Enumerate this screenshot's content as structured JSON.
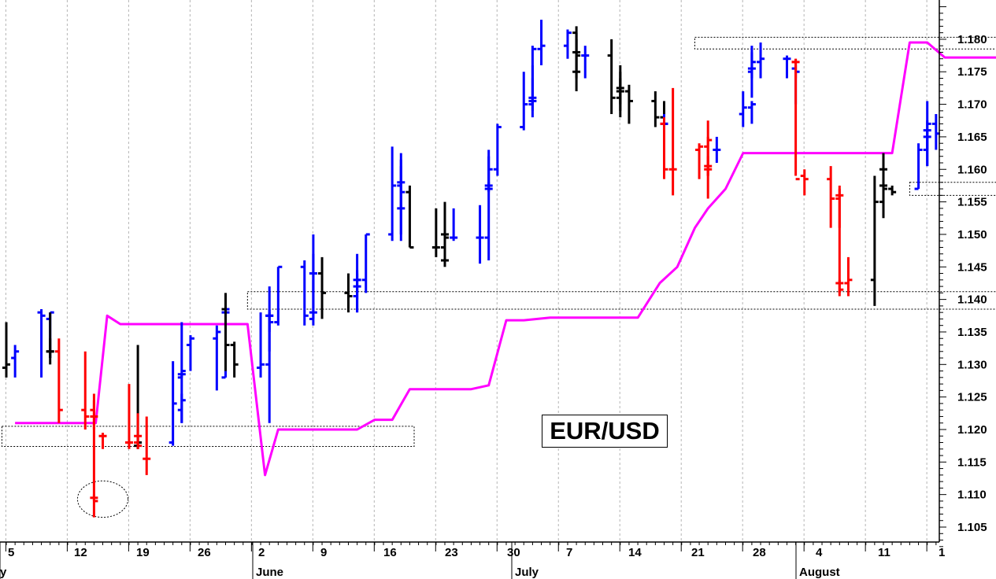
{
  "chart_data": {
    "type": "bar",
    "title": "EUR/USD",
    "y_ticks": [
      "1.105",
      "1.110",
      "1.115",
      "1.120",
      "1.125",
      "1.130",
      "1.135",
      "1.140",
      "1.145",
      "1.150",
      "1.155",
      "1.160",
      "1.165",
      "1.170",
      "1.175",
      "1.180"
    ],
    "ylim": [
      1.1015,
      1.1855
    ],
    "x_day_ticks": [
      "5",
      "12",
      "19",
      "26",
      "2",
      "9",
      "16",
      "23",
      "30",
      "7",
      "14",
      "21",
      "28",
      "4",
      "11",
      "1"
    ],
    "x_month_labels": [
      "y",
      "June",
      "July",
      "August"
    ],
    "series": [
      {
        "name": "",
        "kind": "ohlc",
        "columns": [
          "date",
          "open",
          "high",
          "low",
          "close",
          "color"
        ],
        "bars": [
          [
            "2018-05-03",
            1.1295,
            1.1365,
            1.128,
            1.13,
            "black"
          ],
          [
            "2018-05-04",
            1.131,
            1.133,
            1.128,
            1.132,
            "blue"
          ],
          [
            "2018-05-07",
            1.138,
            1.1385,
            1.128,
            1.1375,
            "blue"
          ],
          [
            "2018-05-08",
            1.137,
            1.138,
            1.131,
            1.138,
            "blue"
          ],
          [
            "2018-05-09",
            1.132,
            1.138,
            1.131,
            1.132,
            "black"
          ],
          [
            "2018-05-10",
            1.132,
            1.134,
            1.13,
            1.132,
            "black"
          ],
          [
            "2018-05-11",
            1.132,
            1.134,
            1.121,
            1.123,
            "red"
          ],
          [
            "2018-05-14",
            1.123,
            1.132,
            1.12,
            1.122,
            "red"
          ],
          [
            "2018-05-15",
            1.123,
            1.1255,
            1.12,
            1.122,
            "red"
          ],
          [
            "2018-05-16",
            1.122,
            1.1245,
            1.1065,
            1.1095,
            "red"
          ],
          [
            "2018-05-17",
            1.1095,
            1.11,
            1.109,
            1.109,
            "red"
          ],
          [
            "2018-05-18",
            1.119,
            1.1195,
            1.117,
            1.119,
            "red"
          ],
          [
            "2018-05-21",
            1.118,
            1.127,
            1.117,
            1.118,
            "red"
          ],
          [
            "2018-05-22",
            1.118,
            1.119,
            1.117,
            1.1175,
            "red"
          ],
          [
            "2018-05-23",
            1.1175,
            1.133,
            1.117,
            1.118,
            "black"
          ],
          [
            "2018-05-24",
            1.119,
            1.1225,
            1.117,
            1.119,
            "red"
          ],
          [
            "2018-05-25",
            1.1155,
            1.122,
            1.113,
            1.1155,
            "red"
          ],
          [
            "2018-05-28",
            1.118,
            1.1305,
            1.1175,
            1.124,
            "blue"
          ],
          [
            "2018-05-29",
            1.123,
            1.1255,
            1.121,
            1.1245,
            "blue"
          ],
          [
            "2018-05-30",
            1.128,
            1.1285,
            1.121,
            1.1285,
            "blue"
          ],
          [
            "2018-05-31",
            1.1285,
            1.1365,
            1.128,
            1.129,
            "blue"
          ],
          [
            "2018-06-01",
            1.133,
            1.1345,
            1.129,
            1.134,
            "blue"
          ],
          [
            "2018-06-04",
            1.134,
            1.136,
            1.126,
            1.135,
            "blue"
          ],
          [
            "2018-06-05",
            1.128,
            1.138,
            1.128,
            1.138,
            "blue"
          ],
          [
            "2018-06-06",
            1.138,
            1.1395,
            1.137,
            1.1385,
            "blue"
          ],
          [
            "2018-06-07",
            1.1385,
            1.141,
            1.129,
            1.133,
            "black"
          ],
          [
            "2018-06-08",
            1.133,
            1.1335,
            1.128,
            1.13,
            "black"
          ],
          [
            "2018-06-11",
            1.1295,
            1.138,
            1.128,
            1.13,
            "blue"
          ],
          [
            "2018-06-12",
            1.13,
            1.138,
            1.121,
            1.1375,
            "blue"
          ],
          [
            "2018-06-13",
            1.1375,
            1.1385,
            1.132,
            1.1375,
            "blue"
          ],
          [
            "2018-06-14",
            1.1375,
            1.142,
            1.135,
            1.1365,
            "blue"
          ],
          [
            "2018-06-15",
            1.1365,
            1.145,
            1.136,
            1.145,
            "blue"
          ],
          [
            "2018-06-18",
            1.145,
            1.146,
            1.136,
            1.1375,
            "blue"
          ],
          [
            "2018-06-19",
            1.137,
            1.143,
            1.137,
            1.138,
            "blue"
          ],
          [
            "2018-06-20",
            1.138,
            1.147,
            1.136,
            1.144,
            "blue"
          ],
          [
            "2018-06-21",
            1.144,
            1.15,
            1.141,
            1.144,
            "blue"
          ],
          [
            "2018-06-22",
            1.144,
            1.1465,
            1.137,
            1.141,
            "black"
          ],
          [
            "2018-06-25",
            1.141,
            1.144,
            1.138,
            1.1405,
            "black"
          ],
          [
            "2018-06-26",
            1.1405,
            1.144,
            1.138,
            1.142,
            "blue"
          ],
          [
            "2018-06-27",
            1.142,
            1.1445,
            1.138,
            1.143,
            "blue"
          ],
          [
            "2018-06-28",
            1.143,
            1.147,
            1.14,
            1.143,
            "blue"
          ],
          [
            "2018-06-29",
            1.143,
            1.15,
            1.141,
            1.15,
            "blue"
          ],
          [
            "2018-07-02",
            1.15,
            1.1635,
            1.149,
            1.1575,
            "blue"
          ],
          [
            "2018-07-03",
            1.1575,
            1.1605,
            1.15,
            1.158,
            "blue"
          ],
          [
            "2018-07-04",
            1.158,
            1.1615,
            1.149,
            1.154,
            "blue"
          ],
          [
            "2018-07-05",
            1.154,
            1.1625,
            1.154,
            1.1565,
            "blue"
          ],
          [
            "2018-07-06",
            1.1565,
            1.1575,
            1.148,
            1.148,
            "black"
          ],
          [
            "2018-07-09",
            1.148,
            1.154,
            1.1465,
            1.148,
            "black"
          ],
          [
            "2018-07-10",
            1.148,
            1.155,
            1.147,
            1.15,
            "black"
          ],
          [
            "2018-07-11",
            1.15,
            1.15,
            1.145,
            1.146,
            "black"
          ],
          [
            "2018-07-12",
            1.146,
            1.151,
            1.147,
            1.1495,
            "black"
          ],
          [
            "2018-07-13",
            1.1495,
            1.154,
            1.149,
            1.1495,
            "blue"
          ],
          [
            "2018-07-16",
            1.1495,
            1.1545,
            1.1455,
            1.1495,
            "blue"
          ],
          [
            "2018-07-17",
            1.1495,
            1.158,
            1.146,
            1.157,
            "blue"
          ],
          [
            "2018-07-18",
            1.157,
            1.162,
            1.157,
            1.1575,
            "blue"
          ],
          [
            "2018-07-19",
            1.1575,
            1.163,
            1.1565,
            1.16,
            "blue"
          ],
          [
            "2018-07-20",
            1.16,
            1.167,
            1.159,
            1.1665,
            "blue"
          ],
          [
            "2018-07-23",
            1.1665,
            1.175,
            1.166,
            1.17,
            "blue"
          ],
          [
            "2018-07-24",
            1.17,
            1.174,
            1.169,
            1.1705,
            "blue"
          ],
          [
            "2018-07-25",
            1.1705,
            1.176,
            1.168,
            1.171,
            "blue"
          ],
          [
            "2018-07-26",
            1.171,
            1.179,
            1.17,
            1.1785,
            "blue"
          ],
          [
            "2018-07-27",
            1.1785,
            1.183,
            1.176,
            1.179,
            "blue"
          ],
          [
            "2018-07-30",
            1.179,
            1.1815,
            1.177,
            1.181,
            "blue"
          ],
          [
            "2018-07-31",
            1.181,
            1.181,
            1.174,
            1.178,
            "black"
          ],
          [
            "2018-08-01",
            1.178,
            1.182,
            1.172,
            1.175,
            "black"
          ],
          [
            "2018-08-02",
            1.175,
            1.18,
            1.175,
            1.1775,
            "black"
          ],
          [
            "2018-08-03",
            1.1775,
            1.179,
            1.174,
            1.1775,
            "blue"
          ],
          [
            "2018-08-06",
            1.1775,
            1.18,
            1.1685,
            1.171,
            "black"
          ],
          [
            "2018-08-07",
            1.171,
            1.176,
            1.17,
            1.1725,
            "black"
          ],
          [
            "2018-08-08",
            1.1725,
            1.175,
            1.168,
            1.172,
            "black"
          ],
          [
            "2018-08-09",
            1.172,
            1.174,
            1.169,
            1.172,
            "black"
          ],
          [
            "2018-08-10",
            1.172,
            1.173,
            1.167,
            1.1705,
            "black"
          ],
          [
            "2018-08-13",
            1.1705,
            1.172,
            1.1665,
            1.168,
            "black"
          ],
          [
            "2018-08-14",
            1.168,
            1.1705,
            1.1665,
            1.167,
            "black"
          ],
          [
            "2018-08-15",
            1.167,
            1.1685,
            1.1655,
            1.167,
            "blue"
          ],
          [
            "2018-08-16",
            1.167,
            1.168,
            1.1585,
            1.16,
            "red"
          ],
          [
            "2018-08-17",
            1.16,
            1.1725,
            1.156,
            1.16,
            "red"
          ],
          [
            "2018-08-20",
            1.163,
            1.164,
            1.1585,
            1.1635,
            "red"
          ],
          [
            "2018-08-21",
            1.1635,
            1.165,
            1.1555,
            1.1645,
            "red"
          ],
          [
            "2018-08-22",
            1.16,
            1.162,
            1.159,
            1.16,
            "red"
          ],
          [
            "2018-08-23",
            1.1605,
            1.1675,
            1.159,
            1.1605,
            "red"
          ],
          [
            "2018-08-24",
            1.163,
            1.165,
            1.161,
            1.163,
            "blue"
          ],
          [
            "2018-08-27",
            1.1685,
            1.172,
            1.1665,
            1.1695,
            "blue"
          ],
          [
            "2018-08-28",
            1.1695,
            1.1705,
            1.167,
            1.17,
            "blue"
          ],
          [
            "2018-08-29",
            1.175,
            1.178,
            1.174,
            1.1755,
            "blue"
          ],
          [
            "2018-08-30",
            1.1755,
            1.179,
            1.171,
            1.1765,
            "blue"
          ],
          [
            "2018-08-31",
            1.1765,
            1.1795,
            1.174,
            1.177,
            "blue"
          ],
          [
            "2018-09-03",
            1.177,
            1.1775,
            1.174,
            1.177,
            "blue"
          ],
          [
            "2018-09-04",
            1.1755,
            1.176,
            1.17,
            1.175,
            "blue"
          ],
          [
            "2018-09-05",
            1.1765,
            1.177,
            1.174,
            1.1765,
            "red"
          ],
          [
            "2018-09-06",
            1.1765,
            1.177,
            1.159,
            1.1585,
            "red"
          ],
          [
            "2018-09-07",
            1.159,
            1.16,
            1.156,
            1.1585,
            "red"
          ],
          [
            "2018-09-10",
            1.1585,
            1.1605,
            1.151,
            1.1555,
            "red"
          ],
          [
            "2018-09-11",
            1.1555,
            1.1575,
            1.151,
            1.156,
            "red"
          ],
          [
            "2018-09-12",
            1.156,
            1.157,
            1.141,
            1.1415,
            "red"
          ],
          [
            "2018-09-13",
            1.1425,
            1.143,
            1.1405,
            1.1425,
            "red"
          ],
          [
            "2018-09-14",
            1.1425,
            1.1465,
            1.1405,
            1.143,
            "red"
          ],
          [
            "2018-09-17",
            1.143,
            1.159,
            1.139,
            1.155,
            "black"
          ],
          [
            "2018-09-18",
            1.155,
            1.16,
            1.155,
            1.16,
            "black"
          ],
          [
            "2018-09-19",
            1.16,
            1.1625,
            1.154,
            1.1575,
            "black"
          ],
          [
            "2018-09-20",
            1.1575,
            1.159,
            1.1525,
            1.157,
            "black"
          ],
          [
            "2018-09-21",
            1.157,
            1.1575,
            1.156,
            1.1565,
            "black"
          ],
          [
            "2018-09-24",
            1.157,
            1.164,
            1.157,
            1.163,
            "blue"
          ],
          [
            "2018-09-25",
            1.163,
            1.166,
            1.1605,
            1.166,
            "blue"
          ],
          [
            "2018-09-26",
            1.166,
            1.1705,
            1.1605,
            1.165,
            "blue"
          ],
          [
            "2018-09-27",
            1.165,
            1.1675,
            1.163,
            1.167,
            "blue"
          ],
          [
            "2018-09-28",
            1.167,
            1.1685,
            1.163,
            1.1655,
            "blue"
          ]
        ]
      },
      {
        "name": "",
        "kind": "line",
        "color": "#ff00ff",
        "points": [
          [
            1.0,
            1.121
          ],
          [
            9.4,
            1.121
          ],
          [
            10.2,
            1.121
          ],
          [
            11.5,
            1.1375
          ],
          [
            13.0,
            1.1362
          ],
          [
            27.5,
            1.1362
          ],
          [
            29.5,
            1.113
          ],
          [
            31.0,
            1.12
          ],
          [
            40.0,
            1.12
          ],
          [
            42.0,
            1.1215
          ],
          [
            44.0,
            1.1215
          ],
          [
            46.0,
            1.1262
          ],
          [
            53.0,
            1.1262
          ],
          [
            55.0,
            1.1268
          ],
          [
            57.0,
            1.1368
          ],
          [
            59.0,
            1.1368
          ],
          [
            62.0,
            1.1372
          ],
          [
            72.0,
            1.1372
          ],
          [
            74.5,
            1.1425
          ],
          [
            76.5,
            1.145
          ],
          [
            78.5,
            1.151
          ],
          [
            80.0,
            1.154
          ],
          [
            82.0,
            1.157
          ],
          [
            84.0,
            1.1625
          ],
          [
            101.0,
            1.1625
          ],
          [
            103.0,
            1.1795
          ],
          [
            105.0,
            1.1795
          ],
          [
            107.0,
            1.1772
          ],
          [
            119.0,
            1.1772
          ],
          [
            121.5,
            1.174
          ],
          [
            123.0,
            1.169
          ],
          [
            125.0,
            1.1625
          ],
          [
            131.0,
            1.1625
          ],
          [
            133.0,
            1.142
          ],
          [
            135.0,
            1.1455
          ],
          [
            137.5,
            1.1465
          ]
        ]
      }
    ],
    "annotation_boxes": [
      [
        -0.5,
        1.1205,
        46.5,
        1.1174
      ],
      [
        27.5,
        1.1412,
        137.5,
        1.1385
      ],
      [
        78.5,
        1.1803,
        131.0,
        1.1785
      ],
      [
        103.0,
        1.158,
        114.5,
        1.156
      ]
    ],
    "annotation_ellipses": [
      [
        11.0,
        1.1093,
        4.0,
        0.0028
      ]
    ],
    "grid": "x-dotted",
    "legend": "none"
  }
}
